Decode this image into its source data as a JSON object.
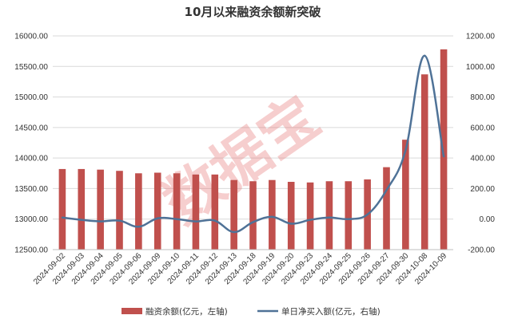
{
  "chart_data": {
    "type": "bar+line",
    "title": "10月以来融资余额新突破",
    "watermark": "数据宝",
    "categories": [
      "2024-09-02",
      "2024-09-03",
      "2024-09-04",
      "2024-09-05",
      "2024-09-06",
      "2024-09-09",
      "2024-09-10",
      "2024-09-11",
      "2024-09-12",
      "2024-09-13",
      "2024-09-18",
      "2024-09-19",
      "2024-09-20",
      "2024-09-23",
      "2024-09-24",
      "2024-09-25",
      "2024-09-26",
      "2024-09-27",
      "2024-09-30",
      "2024-10-08",
      "2024-10-09"
    ],
    "y_left": {
      "min": 12500,
      "max": 16000,
      "step": 500,
      "ticks": [
        "12500.00",
        "13000.00",
        "13500.00",
        "14000.00",
        "14500.00",
        "15000.00",
        "15500.00",
        "16000.00"
      ]
    },
    "y_right": {
      "min": -200,
      "max": 1200,
      "step": 200,
      "ticks": [
        "-200.00",
        "0.00",
        "200.00",
        "400.00",
        "600.00",
        "800.00",
        "1000.00",
        "1200.00"
      ]
    },
    "series": [
      {
        "name": "融资余额(亿元，左轴)",
        "type": "bar",
        "axis": "left",
        "color": "#c0504d",
        "values": [
          13820,
          13820,
          13810,
          13790,
          13750,
          13760,
          13750,
          13730,
          13730,
          13640,
          13620,
          13640,
          13610,
          13600,
          13620,
          13620,
          13650,
          13850,
          14300,
          15370,
          15780
        ]
      },
      {
        "name": "单日净买入额(亿元，右轴)",
        "type": "line",
        "axis": "right",
        "color": "#4f7297",
        "values": [
          10,
          -5,
          -15,
          -10,
          -50,
          5,
          0,
          -15,
          -10,
          -85,
          -20,
          15,
          -30,
          -5,
          10,
          0,
          30,
          190,
          450,
          1070,
          410
        ]
      }
    ],
    "grid": true,
    "legend_position": "bottom"
  }
}
